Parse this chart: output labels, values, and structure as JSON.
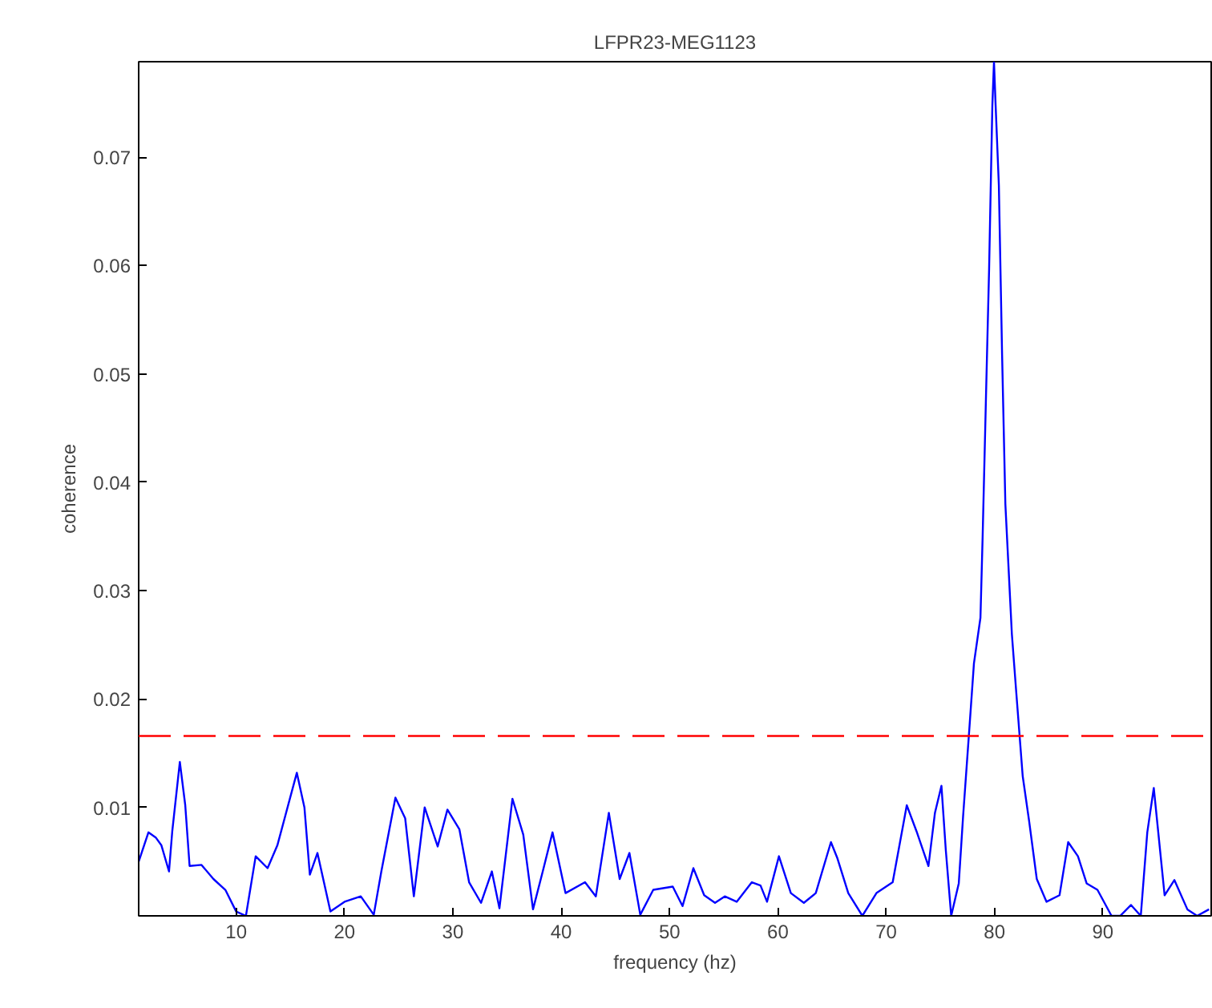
{
  "chart_data": {
    "type": "line",
    "title": "LFPR23-MEG1123",
    "xlabel": "frequency (hz)",
    "ylabel": "coherence",
    "xlim": [
      1,
      100
    ],
    "ylim": [
      0,
      0.0788
    ],
    "xticks": [
      10,
      20,
      30,
      40,
      50,
      60,
      70,
      80,
      90
    ],
    "yticks": [
      0.01,
      0.02,
      0.03,
      0.04,
      0.05,
      0.06,
      0.07
    ],
    "line_style": "solid",
    "ref_lines": [
      {
        "axis": "y",
        "value": 0.0166,
        "color": "#ff0000",
        "line_style": "dashed"
      }
    ],
    "series": [
      {
        "color": "#0000ff",
        "x": [
          1.0,
          1.9,
          2.6,
          3.1,
          3.8,
          4.1,
          4.8,
          5.3,
          5.7,
          6.8,
          7.9,
          9.0,
          10.0,
          10.9,
          11.8,
          12.9,
          13.8,
          15.6,
          16.3,
          16.8,
          17.5,
          18.7,
          20.0,
          21.5,
          22.7,
          23.4,
          24.7,
          25.6,
          26.4,
          27.4,
          28.6,
          29.5,
          30.6,
          31.5,
          32.6,
          33.6,
          34.3,
          35.5,
          36.5,
          37.4,
          38.3,
          39.2,
          40.4,
          42.2,
          43.2,
          44.4,
          45.4,
          46.3,
          47.3,
          48.5,
          50.3,
          51.2,
          52.2,
          53.2,
          54.2,
          55.1,
          56.2,
          57.6,
          58.4,
          59.0,
          60.1,
          61.2,
          62.4,
          63.5,
          64.9,
          65.5,
          66.5,
          67.8,
          69.1,
          70.6,
          71.9,
          72.8,
          73.9,
          74.5,
          75.1,
          75.5,
          76.0,
          76.7,
          77.1,
          77.7,
          78.1,
          78.7,
          78.9,
          79.2,
          79.5,
          79.8,
          79.95,
          80.1,
          80.4,
          80.7,
          81.0,
          81.6,
          82.0,
          82.6,
          83.2,
          83.9,
          84.8,
          86.0,
          86.8,
          87.7,
          88.5,
          89.5,
          90.8,
          91.6,
          92.6,
          93.5,
          94.1,
          94.7,
          95.7,
          96.6,
          97.8,
          98.7,
          99.8
        ],
        "values": [
          0.005,
          0.0077,
          0.0072,
          0.0065,
          0.0041,
          0.0078,
          0.0142,
          0.0102,
          0.0046,
          0.0047,
          0.0034,
          0.0024,
          0.0004,
          0.0,
          0.0055,
          0.0044,
          0.0065,
          0.0132,
          0.01,
          0.0038,
          0.0058,
          0.0004,
          0.0013,
          0.0018,
          0.0001,
          0.0041,
          0.0109,
          0.009,
          0.0018,
          0.01,
          0.0064,
          0.0098,
          0.008,
          0.0031,
          0.0012,
          0.0041,
          0.0007,
          0.0108,
          0.0075,
          0.0006,
          0.0041,
          0.0077,
          0.0021,
          0.0031,
          0.0018,
          0.0095,
          0.0034,
          0.0058,
          0.0001,
          0.0024,
          0.0027,
          0.0009,
          0.0044,
          0.0019,
          0.0012,
          0.0018,
          0.0013,
          0.0031,
          0.0028,
          0.0013,
          0.0055,
          0.0021,
          0.0012,
          0.0021,
          0.0068,
          0.0053,
          0.0021,
          0.0,
          0.0021,
          0.0031,
          0.0102,
          0.0078,
          0.0046,
          0.0095,
          0.012,
          0.0061,
          0.0,
          0.003,
          0.0092,
          0.0176,
          0.0233,
          0.0275,
          0.0349,
          0.0474,
          0.0597,
          0.0748,
          0.0788,
          0.0748,
          0.0674,
          0.0517,
          0.038,
          0.026,
          0.0207,
          0.0129,
          0.0087,
          0.0034,
          0.0013,
          0.0019,
          0.0068,
          0.0055,
          0.003,
          0.0024,
          0.0,
          0.0,
          0.001,
          0.0,
          0.0077,
          0.0118,
          0.0019,
          0.0033,
          0.0006,
          0.0,
          0.0006
        ]
      }
    ]
  }
}
